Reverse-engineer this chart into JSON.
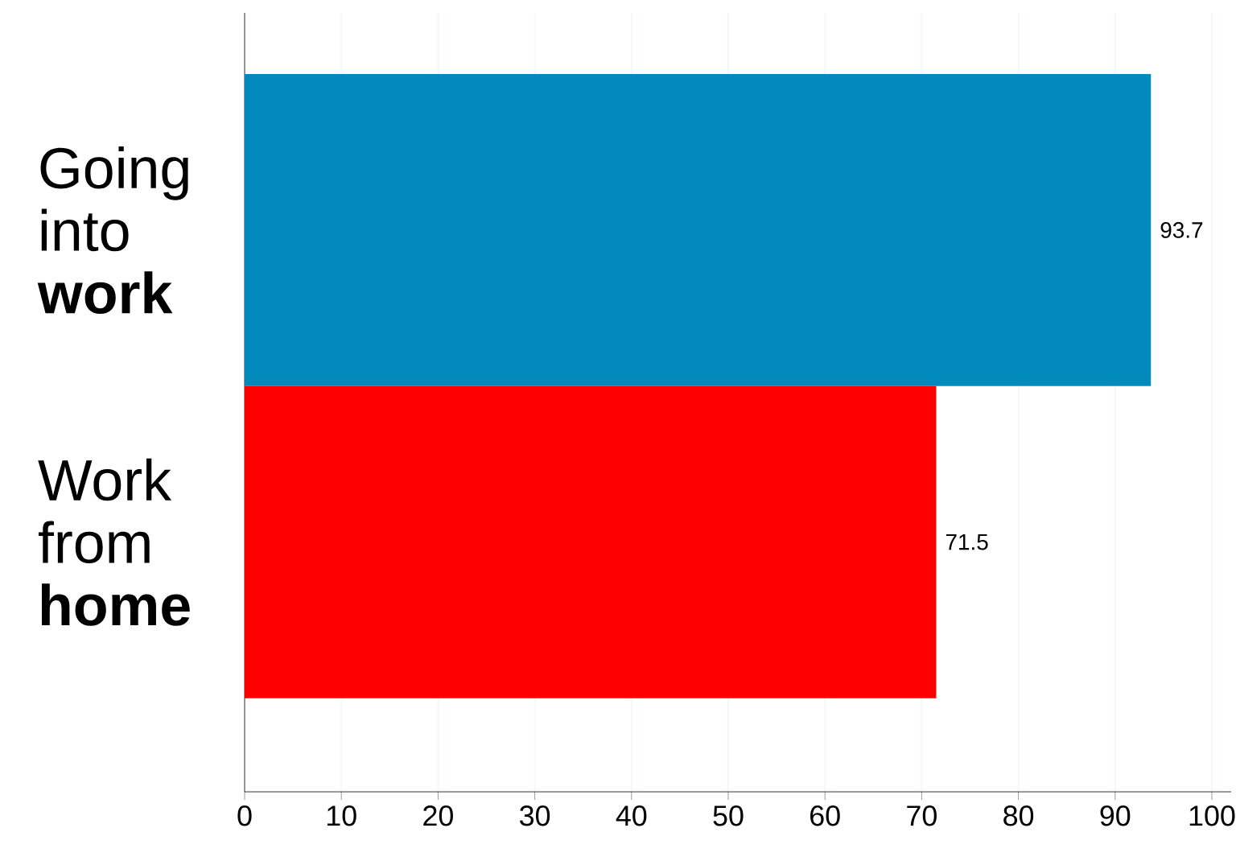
{
  "chart_data": {
    "type": "bar",
    "orientation": "horizontal",
    "categories": [
      "Going into **work**",
      "Work from **home**"
    ],
    "values": [
      93.7,
      71.5
    ],
    "colors": [
      "#038abd",
      "#ff0000"
    ],
    "xlim": [
      0,
      102
    ],
    "xticks": [
      0,
      10,
      20,
      30,
      40,
      50,
      60,
      70,
      80,
      90,
      100
    ],
    "grid": "x",
    "data_labels": true
  }
}
